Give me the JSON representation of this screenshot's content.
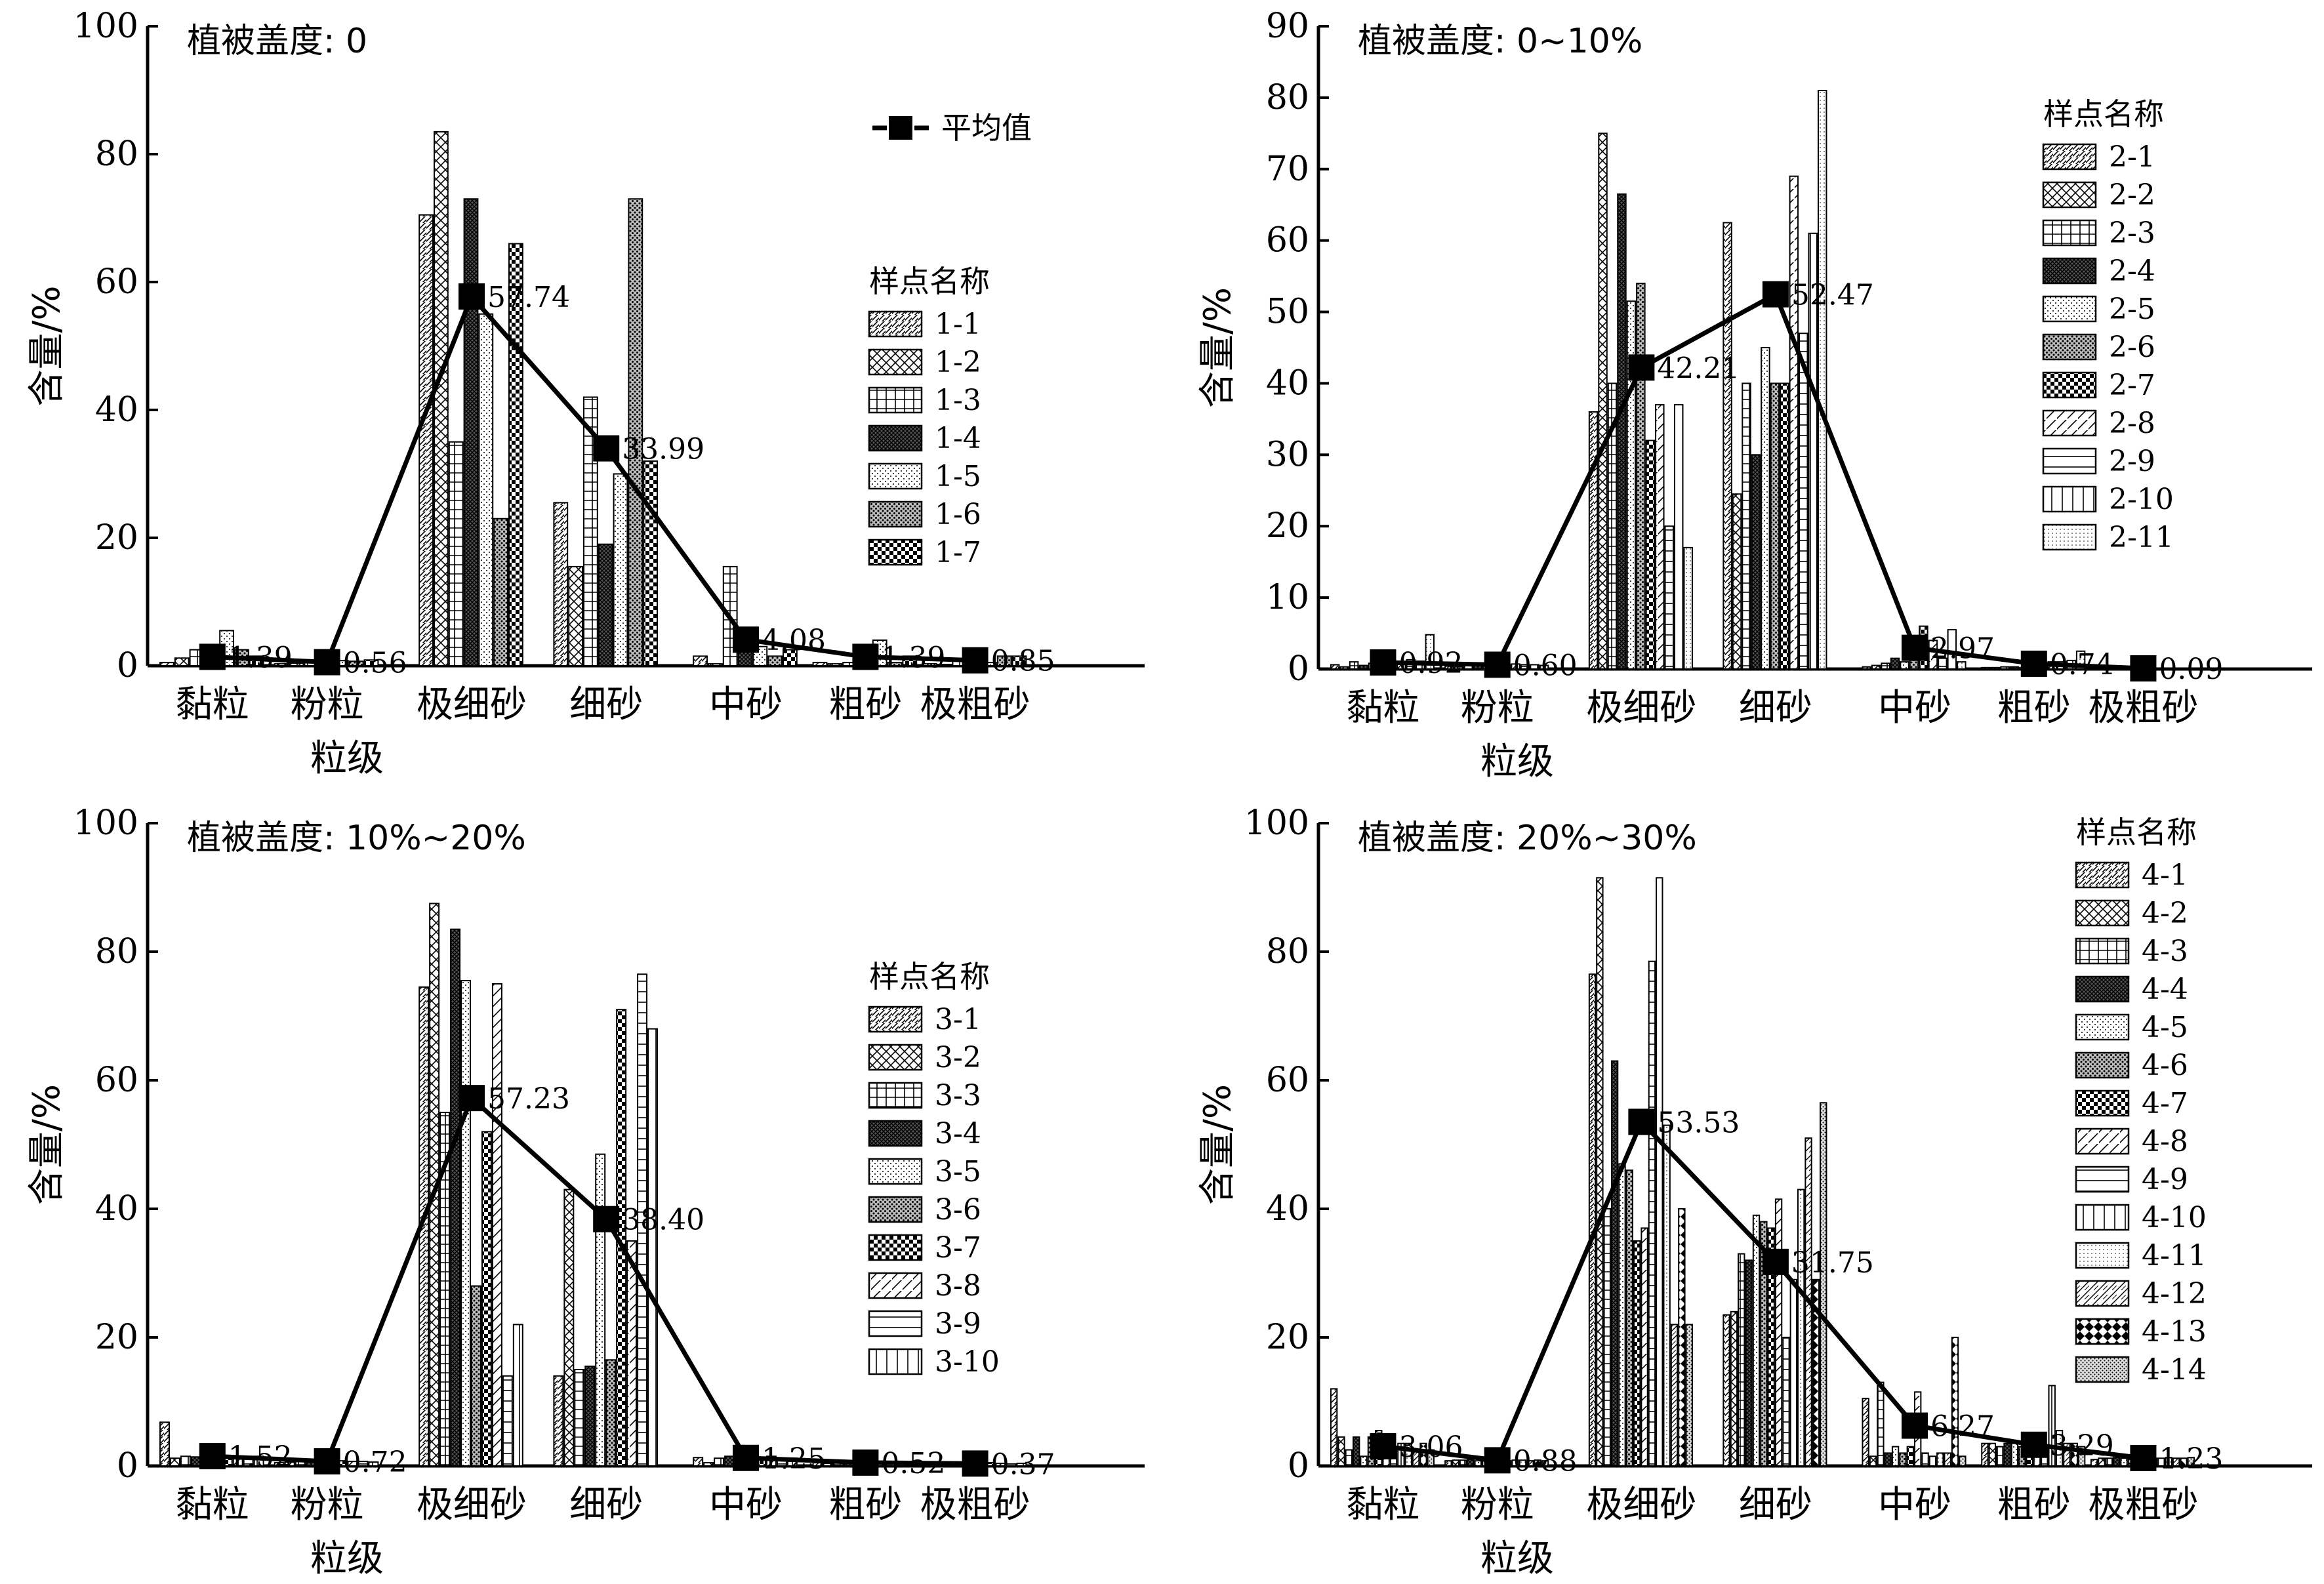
{
  "mean_legend_label": "平均值",
  "chart_data": [
    {
      "type": "bar",
      "title": "植被盖度: 0",
      "xlabel": "粒级",
      "ylabel": "含量/%",
      "ylim": [
        0,
        100
      ],
      "yticks": [
        0,
        20,
        40,
        60,
        80,
        100
      ],
      "categories": [
        "黏粒",
        "粉粒",
        "极细砂",
        "细砂",
        "中砂",
        "粗砂",
        "极粗砂"
      ],
      "legend_title": "样点名称",
      "legend_position": "top-right",
      "series": [
        {
          "name": "1-1",
          "values": [
            0.5,
            0.3,
            70.5,
            25.5,
            1.5,
            0.5,
            0.3
          ]
        },
        {
          "name": "1-2",
          "values": [
            1.2,
            0.4,
            83.5,
            15.5,
            0.3,
            0.3,
            0.2
          ]
        },
        {
          "name": "1-3",
          "values": [
            2.5,
            0.5,
            35,
            42,
            15.5,
            0.5,
            1
          ]
        },
        {
          "name": "1-4",
          "values": [
            1.0,
            0.3,
            73,
            19,
            3,
            0.5,
            1
          ]
        },
        {
          "name": "1-5",
          "values": [
            5.5,
            0.8,
            55,
            30,
            3,
            4,
            0.5
          ]
        },
        {
          "name": "1-6",
          "values": [
            2.5,
            0.7,
            23,
            73,
            1.5,
            0.5,
            1.5
          ]
        },
        {
          "name": "1-7",
          "values": [
            1.5,
            0.9,
            66,
            32,
            2.5,
            1.5,
            1.5
          ]
        }
      ],
      "mean": {
        "name": "平均值",
        "values": [
          1.39,
          0.56,
          57.74,
          33.99,
          4.08,
          1.39,
          0.85
        ],
        "labels": [
          "1.39",
          "0.56",
          "57.74",
          "33.99",
          "4.08",
          "1.39",
          "0.85"
        ]
      }
    },
    {
      "type": "bar",
      "title": "植被盖度: 0~10%",
      "xlabel": "粒级",
      "ylabel": "含量/%",
      "ylim": [
        0,
        90
      ],
      "yticks": [
        0,
        10,
        20,
        30,
        40,
        50,
        60,
        70,
        80,
        90
      ],
      "categories": [
        "黏粒",
        "粉粒",
        "极细砂",
        "细砂",
        "中砂",
        "粗砂",
        "极粗砂"
      ],
      "legend_title": "样点名称",
      "legend_position": "top-right",
      "series": [
        {
          "name": "2-1",
          "values": [
            0.6,
            0.4,
            36,
            62.5,
            0.3,
            0.2,
            0.1
          ]
        },
        {
          "name": "2-2",
          "values": [
            0.3,
            0.3,
            75,
            24.5,
            0.5,
            0.2,
            0.1
          ]
        },
        {
          "name": "2-3",
          "values": [
            1.0,
            0.6,
            40,
            40,
            0.8,
            0.3,
            0.1
          ]
        },
        {
          "name": "2-4",
          "values": [
            0.5,
            0.5,
            66.5,
            30,
            1.5,
            0.3,
            0.1
          ]
        },
        {
          "name": "2-5",
          "values": [
            0.8,
            0.6,
            51.5,
            45,
            1.0,
            0.2,
            0.1
          ]
        },
        {
          "name": "2-6",
          "values": [
            0.6,
            0.7,
            54,
            40,
            1.5,
            0.3,
            0.1
          ]
        },
        {
          "name": "2-7",
          "values": [
            1.0,
            0.6,
            32,
            40,
            6,
            0.5,
            0.1
          ]
        },
        {
          "name": "2-8",
          "values": [
            0.9,
            0.7,
            37,
            69,
            4,
            1.0,
            0.1
          ]
        },
        {
          "name": "2-9",
          "values": [
            1.3,
            0.6,
            20,
            47,
            1.5,
            1.0,
            0.1
          ]
        },
        {
          "name": "2-10",
          "values": [
            1.1,
            0.6,
            37,
            61,
            5.5,
            1.2,
            0.1
          ]
        },
        {
          "name": "2-11",
          "values": [
            4.8,
            0.5,
            17,
            81,
            1.0,
            2.5,
            0.1
          ]
        }
      ],
      "mean": {
        "name": "平均值",
        "values": [
          0.92,
          0.6,
          42.21,
          52.47,
          2.97,
          0.74,
          0.09
        ],
        "labels": [
          "0.92",
          "0.60",
          "42.21",
          "52.47",
          "2.97",
          "0.74",
          "0.09"
        ]
      }
    },
    {
      "type": "bar",
      "title": "植被盖度: 10%~20%",
      "xlabel": "粒级",
      "ylabel": "含量/%",
      "ylim": [
        0,
        100
      ],
      "yticks": [
        0,
        20,
        40,
        60,
        80,
        100
      ],
      "categories": [
        "黏粒",
        "粉粒",
        "极细砂",
        "细砂",
        "中砂",
        "粗砂",
        "极粗砂"
      ],
      "legend_title": "样点名称",
      "legend_position": "top-right",
      "series": [
        {
          "name": "3-1",
          "values": [
            6.8,
            0.5,
            74.5,
            14,
            1.3,
            0.5,
            0.3
          ]
        },
        {
          "name": "3-2",
          "values": [
            1.2,
            0.6,
            87.5,
            43,
            0.5,
            0.4,
            0.3
          ]
        },
        {
          "name": "3-3",
          "values": [
            1.5,
            0.8,
            55,
            15,
            1.2,
            0.5,
            0.4
          ]
        },
        {
          "name": "3-4",
          "values": [
            1.4,
            0.7,
            83.5,
            15.5,
            1.5,
            0.5,
            0.3
          ]
        },
        {
          "name": "3-5",
          "values": [
            1.6,
            0.8,
            75.5,
            48.5,
            1.0,
            0.6,
            0.4
          ]
        },
        {
          "name": "3-6",
          "values": [
            1.5,
            0.7,
            28,
            16.5,
            1.5,
            0.5,
            0.4
          ]
        },
        {
          "name": "3-7",
          "values": [
            1.6,
            0.8,
            52,
            71,
            1.2,
            0.6,
            0.5
          ]
        },
        {
          "name": "3-8",
          "values": [
            1.5,
            0.7,
            75,
            35,
            1.5,
            0.5,
            0.4
          ]
        },
        {
          "name": "3-9",
          "values": [
            1.4,
            0.7,
            14,
            76.5,
            1.0,
            0.5,
            0.3
          ]
        },
        {
          "name": "3-10",
          "values": [
            1.5,
            0.6,
            22,
            68,
            1.2,
            0.6,
            0.4
          ]
        }
      ],
      "mean": {
        "name": "平均值",
        "values": [
          1.52,
          0.72,
          57.23,
          38.4,
          1.25,
          0.52,
          0.37
        ],
        "labels": [
          "1.52",
          "0.72",
          "57.23",
          "38.40",
          "1.25",
          "0.52",
          "0.37"
        ]
      }
    },
    {
      "type": "bar",
      "title": "植被盖度: 20%~30%",
      "xlabel": "粒级",
      "ylabel": "含量/%",
      "ylim": [
        0,
        100
      ],
      "yticks": [
        0,
        20,
        40,
        60,
        80,
        100
      ],
      "categories": [
        "黏粒",
        "粉粒",
        "极细砂",
        "细砂",
        "中砂",
        "粗砂",
        "极粗砂"
      ],
      "legend_title": "样点名称",
      "legend_position": "top-right",
      "series": [
        {
          "name": "4-1",
          "values": [
            12,
            0.8,
            76.5,
            23.5,
            10.5,
            3.5,
            1.0
          ]
        },
        {
          "name": "4-2",
          "values": [
            4.5,
            0.9,
            91.5,
            24,
            1.5,
            3.5,
            1.2
          ]
        },
        {
          "name": "4-3",
          "values": [
            2.5,
            0.9,
            40,
            33,
            13,
            3.0,
            1.2
          ]
        },
        {
          "name": "4-4",
          "values": [
            4.5,
            1.0,
            63,
            32,
            2,
            3.5,
            1.3
          ]
        },
        {
          "name": "4-5",
          "values": [
            1.5,
            0.8,
            47,
            39,
            3,
            3.5,
            1.2
          ]
        },
        {
          "name": "4-6",
          "values": [
            4.5,
            0.8,
            46,
            38,
            2,
            3.0,
            1.3
          ]
        },
        {
          "name": "4-7",
          "values": [
            5.5,
            0.9,
            35,
            37,
            3,
            3.5,
            1.2
          ]
        },
        {
          "name": "4-8",
          "values": [
            4.5,
            0.9,
            37,
            41.5,
            11.5,
            3.5,
            1.3
          ]
        },
        {
          "name": "4-9",
          "values": [
            2.5,
            0.8,
            78.5,
            20,
            2,
            3.0,
            1.2
          ]
        },
        {
          "name": "4-10",
          "values": [
            3.5,
            0.9,
            91.5,
            29,
            1.5,
            12.5,
            1.2
          ]
        },
        {
          "name": "4-11",
          "values": [
            3.5,
            0.9,
            53,
            43,
            2,
            5.5,
            1.3
          ]
        },
        {
          "name": "4-12",
          "values": [
            2.5,
            0.8,
            22,
            51,
            2,
            3.5,
            1.2
          ]
        },
        {
          "name": "4-13",
          "values": [
            3.5,
            0.9,
            40,
            29,
            20,
            3.5,
            1.2
          ]
        },
        {
          "name": "4-14",
          "values": [
            2.5,
            0.8,
            22,
            56.5,
            1.5,
            3.0,
            1.3
          ]
        }
      ],
      "mean": {
        "name": "平均值",
        "values": [
          3.06,
          0.88,
          53.53,
          31.75,
          6.27,
          3.29,
          1.23
        ],
        "labels": [
          "3.06",
          "0.88",
          "53.53",
          "31.75",
          "6.27",
          "3.29",
          "1.23"
        ]
      }
    }
  ]
}
